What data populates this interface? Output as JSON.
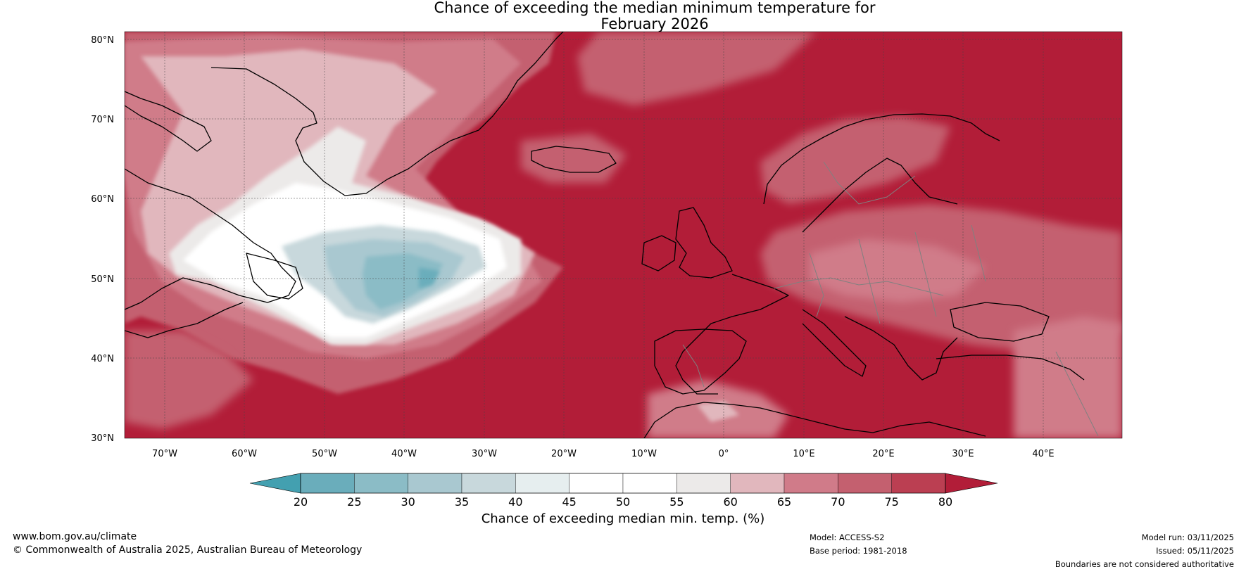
{
  "title": {
    "line1": "Chance of exceeding the median minimum temperature for",
    "line2": "February 2026"
  },
  "map": {
    "lat_ticks": [
      "80°N",
      "70°N",
      "60°N",
      "50°N",
      "40°N",
      "30°N"
    ],
    "lon_ticks": [
      "70°W",
      "60°W",
      "50°W",
      "40°W",
      "30°W",
      "20°W",
      "10°W",
      "0°",
      "10°E",
      "20°E",
      "30°E",
      "40°E"
    ],
    "extent": {
      "lon_min": -75,
      "lon_max": 50,
      "lat_min": 30,
      "lat_max": 81
    },
    "background_color": "#b21d38"
  },
  "colorbar": {
    "ticks": [
      "20",
      "25",
      "30",
      "35",
      "40",
      "45",
      "50",
      "55",
      "60",
      "65",
      "70",
      "75",
      "80"
    ],
    "colors": [
      "#4fa0b2",
      "#6aadbb",
      "#8bbcc6",
      "#a9c8d0",
      "#c8d8dc",
      "#e6eeef",
      "#ffffff",
      "#ffffff",
      "#eceae9",
      "#e1b7bd",
      "#d07b89",
      "#c4606f",
      "#bb3f52"
    ],
    "under_color": "#43a0b0",
    "over_color": "#b21d38",
    "label": "Chance of exceeding median min. temp. (%)"
  },
  "footer": {
    "website": "www.bom.gov.au/climate",
    "copyright": "© Commonwealth of Australia 2025, Australian Bureau of Meteorology",
    "model": "Model: ACCESS-S2",
    "base_period": "Base period: 1981-2018",
    "model_run": "Model run: 03/11/2025",
    "issued": "Issued: 05/11/2025",
    "boundaries": "Boundaries are not considered authoritative"
  }
}
